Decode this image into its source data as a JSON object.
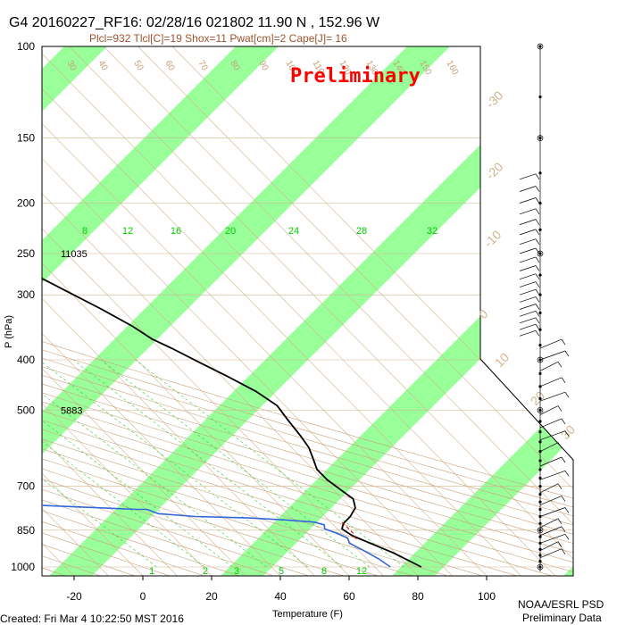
{
  "header": {
    "title": "G4 20160227_RF16: 02/28/16 021802  11.90 N , 152.96 W",
    "subtitle": "Plcl=932 Tlcl[C]=19 Shox=11 Pwat[cm]=2 Cape[J]= 16",
    "stamp": "Preliminary"
  },
  "footer": {
    "created": "Created: Fri Mar  4 10:22:50 MST 2016",
    "org": "NOAA/ESRL PSD",
    "note": "Preliminary Data"
  },
  "colors": {
    "temperature": "#000000",
    "dewpoint": "#3366dd",
    "parcel": "#cc0000",
    "band": "#99ff99",
    "isotherm": "#d2b48c",
    "mixing_ratio": "#00cc00"
  },
  "chart_data": {
    "type": "line",
    "title": "G4 20160227_RF16: 02/28/16 021802  11.90 N , 152.96 W",
    "xlabel": "Temperature (F)",
    "ylabel": "P (hPa)",
    "xlim": [
      -28,
      108
    ],
    "ylim": [
      1000,
      100
    ],
    "yscale": "log",
    "x_ticks": [
      "-20",
      "0",
      "20",
      "40",
      "60",
      "80",
      "100"
    ],
    "y_ticks": [
      "100",
      "150",
      "200",
      "250",
      "300",
      "400",
      "500",
      "700",
      "850",
      "1000"
    ],
    "grid": true,
    "isotherm_labels": [
      "-30",
      "-20",
      "-10",
      "0",
      "10",
      "20",
      "30",
      "40",
      "50",
      "60",
      "70",
      "80",
      "90",
      "100",
      "110"
    ],
    "dry_adiabat_labels": [
      "30",
      "40",
      "50",
      "60",
      "70",
      "80",
      "90",
      "100",
      "110",
      "120",
      "130",
      "140",
      "150",
      "160"
    ],
    "mixing_ratio_labels": [
      "1",
      "2",
      "3",
      "5",
      "8",
      "12",
      "8",
      "12",
      "16",
      "20",
      "24",
      "28",
      "32"
    ],
    "height_labels": [
      {
        "p": 250,
        "text": "11035"
      },
      {
        "p": 500,
        "text": "5883"
      }
    ],
    "series": [
      {
        "name": "temperature",
        "values": [
          [
            30,
            170
          ],
          [
            34,
            190
          ],
          [
            38,
            210
          ],
          [
            44,
            230
          ],
          [
            48,
            250
          ],
          [
            53,
            272
          ],
          [
            58,
            295
          ],
          [
            63,
            320
          ],
          [
            67,
            345
          ],
          [
            69,
            365
          ],
          [
            72,
            380
          ],
          [
            76,
            405
          ],
          [
            80,
            430
          ],
          [
            84,
            460
          ],
          [
            86,
            490
          ],
          [
            85,
            520
          ],
          [
            84,
            560
          ],
          [
            83,
            590
          ],
          [
            81,
            620
          ],
          [
            79,
            650
          ],
          [
            79,
            680
          ],
          [
            80,
            710
          ],
          [
            81,
            740
          ],
          [
            79,
            770
          ],
          [
            75,
            800
          ],
          [
            71,
            825
          ],
          [
            69,
            845
          ],
          [
            70,
            870
          ],
          [
            73,
            900
          ],
          [
            77,
            940
          ],
          [
            81,
            1000
          ]
        ]
      },
      {
        "name": "dewpoint",
        "values": [
          [
            -4,
            190
          ],
          [
            -2,
            200
          ],
          [
            1,
            215
          ],
          [
            2,
            225
          ],
          [
            1,
            232
          ],
          [
            -1,
            240
          ],
          [
            -1,
            252
          ],
          [
            -2,
            262
          ],
          [
            -4,
            270
          ],
          [
            -14,
            285
          ],
          [
            -20,
            290
          ],
          [
            -20,
            330
          ],
          [
            -22,
            370
          ],
          [
            -20,
            420
          ],
          [
            -19,
            470
          ],
          [
            -19,
            520
          ],
          [
            -20,
            570
          ],
          [
            -21,
            620
          ],
          [
            -22,
            670
          ],
          [
            -22,
            720
          ],
          [
            -15,
            760
          ],
          [
            5,
            770
          ],
          [
            15,
            775
          ],
          [
            18,
            775
          ],
          [
            20,
            790
          ],
          [
            30,
            800
          ],
          [
            45,
            805
          ],
          [
            55,
            812
          ],
          [
            63,
            820
          ],
          [
            65,
            830
          ],
          [
            64,
            845
          ],
          [
            66,
            860
          ],
          [
            68,
            880
          ],
          [
            67,
            900
          ],
          [
            69,
            930
          ],
          [
            71,
            965
          ],
          [
            72,
            1000
          ]
        ]
      },
      {
        "name": "parcel",
        "values": [
          [
            71,
            820
          ],
          [
            71,
            860
          ],
          [
            70,
            890
          ]
        ]
      }
    ],
    "wind_barbs": "right-side column, 100-1000 hPa"
  }
}
